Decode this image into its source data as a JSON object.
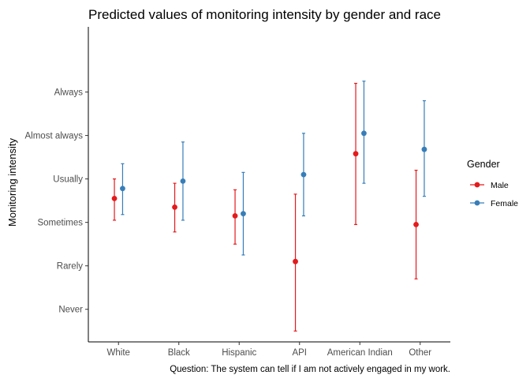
{
  "chart_data": {
    "type": "scatter",
    "subtype": "point-range",
    "title": "Predicted values of monitoring intensity by gender and race",
    "xlabel": "",
    "ylabel": "Monitoring intensity",
    "caption": "Question: The system can tell if I am not actively engaged in my work.",
    "categories": [
      "White",
      "Black",
      "Hispanic",
      "API",
      "American Indian",
      "Other"
    ],
    "y_levels": [
      "Never",
      "Rarely",
      "Sometimes",
      "Usually",
      "Almost always",
      "Always"
    ],
    "ylim": [
      0.25,
      7.5
    ],
    "grid": false,
    "legend": {
      "title": "Gender",
      "position": "right"
    },
    "series": [
      {
        "name": "Male",
        "color": "#E41A1C",
        "estimate": [
          3.55,
          3.35,
          3.15,
          2.1,
          4.58,
          2.95
        ],
        "lower": [
          3.05,
          2.78,
          2.5,
          0.5,
          2.95,
          1.7
        ],
        "upper": [
          4.0,
          3.9,
          3.75,
          3.65,
          6.2,
          4.2
        ]
      },
      {
        "name": "Female",
        "color": "#377EB8",
        "estimate": [
          3.78,
          3.95,
          3.2,
          4.1,
          5.05,
          4.68
        ],
        "lower": [
          3.18,
          3.05,
          2.25,
          3.15,
          3.9,
          3.6
        ],
        "upper": [
          4.35,
          4.85,
          4.15,
          5.05,
          6.25,
          5.8
        ]
      }
    ]
  }
}
